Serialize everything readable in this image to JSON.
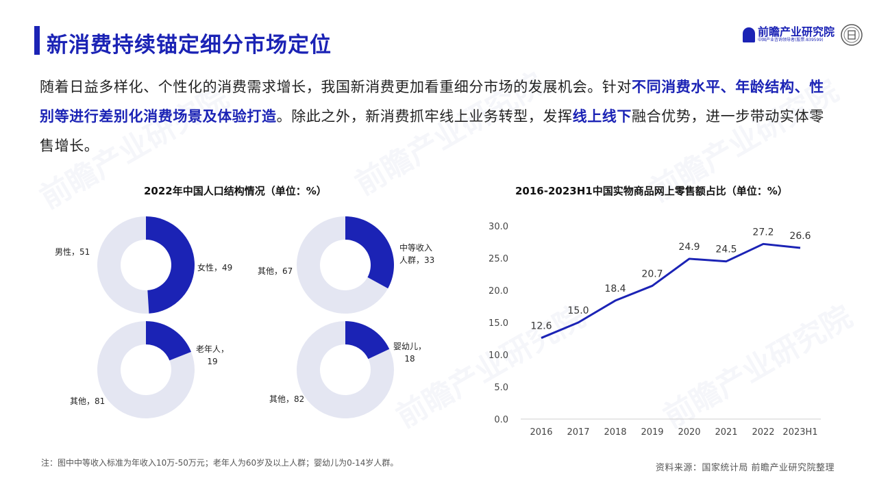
{
  "header": {
    "title": "新消费持续锚定细分市场定位",
    "logo_name": "前瞻产业研究院",
    "logo_sub": "中国产业咨询领导者(股票:839599)",
    "watermark": "前瞻产业研究院"
  },
  "paragraph": {
    "p1": "随着日益多样化、个性化的消费需求增长，我国新消费更加看重细分市场的发展机会。针对",
    "h1": "不同消费水平、年龄结构、性别等进行差别化消费场景及体验打造",
    "p2": "。除此之外，新消费抓牢线上业务转型，发挥",
    "h2": "线上线下",
    "p3": "融合优势，进一步带动实体零售增长。"
  },
  "footer": {
    "note": "注：图中中等收入标准为年收入10万-50万元；老年人为60岁及以上人群；婴幼儿为0-14岁人群。",
    "source": "资料来源：国家统计局 前瞻产业研究院整理"
  },
  "colors": {
    "accent": "#1b23b5",
    "donut_bg": "#e4e6f2"
  },
  "chart_data": [
    {
      "type": "pie",
      "title": "2022年中国人口结构情况（单位：%）",
      "donuts": [
        {
          "slices": [
            {
              "label": "女性",
              "value": 49
            },
            {
              "label": "男性",
              "value": 51
            }
          ]
        },
        {
          "slices": [
            {
              "label": "中等收入人群",
              "value": 33
            },
            {
              "label": "其他",
              "value": 67
            }
          ]
        },
        {
          "slices": [
            {
              "label": "老年人",
              "value": 19
            },
            {
              "label": "其他",
              "value": 81
            }
          ]
        },
        {
          "slices": [
            {
              "label": "婴幼儿",
              "value": 18
            },
            {
              "label": "其他",
              "value": 82
            }
          ]
        }
      ]
    },
    {
      "type": "line",
      "title": "2016-2023H1中国实物商品网上零售额占比（单位：%）",
      "categories": [
        "2016",
        "2017",
        "2018",
        "2019",
        "2020",
        "2021",
        "2022",
        "2023H1"
      ],
      "series": [
        {
          "values": [
            12.6,
            15.0,
            18.4,
            20.7,
            24.9,
            24.5,
            27.2,
            26.6
          ]
        }
      ],
      "ylim": [
        0,
        30
      ],
      "yticks": [
        "0.0",
        "5.0",
        "10.0",
        "15.0",
        "20.0",
        "25.0",
        "30.0"
      ],
      "value_labels": [
        "12.6",
        "15.0",
        "18.4",
        "20.7",
        "24.9",
        "24.5",
        "27.2",
        "26.6"
      ],
      "grid": false
    }
  ]
}
